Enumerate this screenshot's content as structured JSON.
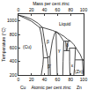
{
  "chart_data": {
    "type": "line",
    "x2label": "Mass per cent zinc",
    "xlabel": "Atomic per cent zinc",
    "ylabel": "Temperature (°C)",
    "end_labels": [
      "Cu",
      "Zn"
    ],
    "xlim": [
      0,
      100
    ],
    "xticks": [
      0,
      20,
      40,
      60,
      80,
      100
    ],
    "x2lim": [
      0,
      100
    ],
    "x2ticks": [
      0,
      20,
      40,
      60,
      80,
      100
    ],
    "ylim": [
      200,
      1100
    ],
    "yticks": [
      200,
      400,
      600,
      800,
      1000
    ],
    "grid": false,
    "color": "#1a1a1a",
    "series": [
      {
        "x": [
          0,
          10,
          20,
          30,
          36.8,
          45,
          52,
          59.1,
          65,
          70,
          75,
          80,
          85,
          88.5,
          92,
          95,
          98.3,
          100
        ],
        "values": [
          1085,
          1062,
          1025,
          965,
          903,
          885,
          860,
          834,
          805,
          770,
          730,
          700,
          650,
          598,
          550,
          500,
          424,
          420
        ]
      },
      {
        "x": [
          0,
          10,
          20,
          32.5
        ],
        "values": [
          1085,
          1045,
          995,
          903
        ]
      },
      {
        "x": [
          32.5,
          36.8
        ],
        "values": [
          903,
          903
        ]
      },
      {
        "x": [
          32.5,
          35,
          37,
          38.3,
          37.5,
          36,
          35
        ],
        "values": [
          903,
          800,
          650,
          454,
          350,
          250,
          200
        ]
      },
      {
        "x": [
          36.8,
          38,
          40,
          42,
          44.8
        ],
        "values": [
          903,
          800,
          700,
          600,
          468
        ]
      },
      {
        "x": [
          56.5,
          55,
          52,
          50,
          48.2
        ],
        "values": [
          834,
          800,
          700,
          600,
          468
        ]
      },
      {
        "x": [
          38.3,
          45
        ],
        "values": [
          454,
          454
        ]
      },
      {
        "x": [
          44.8,
          45.5,
          46,
          46
        ],
        "values": [
          468,
          400,
          300,
          200
        ]
      },
      {
        "x": [
          48.2,
          48.5,
          48.8,
          49
        ],
        "values": [
          468,
          400,
          300,
          200
        ]
      },
      {
        "x": [
          44.8,
          46.5,
          48.2
        ],
        "values": [
          468,
          470,
          468
        ],
        "line_style": "dash"
      },
      {
        "x": [
          56.5,
          59.1
        ],
        "values": [
          834,
          834
        ]
      },
      {
        "x": [
          57.7,
          58,
          58.5,
          59,
          59.5
        ],
        "values": [
          834,
          700,
          600,
          400,
          200
        ]
      },
      {
        "x": [
          58.5,
          64,
          69.5
        ],
        "values": [
          834,
          780,
          700
        ]
      },
      {
        "x": [
          69.5,
          69.5,
          68.5,
          68
        ],
        "values": [
          700,
          600,
          400,
          200
        ]
      },
      {
        "x": [
          69.5,
          80
        ],
        "values": [
          700,
          700
        ]
      },
      {
        "x": [
          72.5,
          73.5
        ],
        "values": [
          700,
          560
        ]
      },
      {
        "x": [
          76,
          74.5
        ],
        "values": [
          700,
          560
        ]
      },
      {
        "x": [
          69.5,
          78.5
        ],
        "values": [
          560,
          560
        ]
      },
      {
        "x": [
          78,
          88.5
        ],
        "values": [
          598,
          598
        ]
      },
      {
        "x": [
          78,
          78.5,
          78.5,
          79
        ],
        "values": [
          598,
          560,
          400,
          200
        ]
      },
      {
        "x": [
          87.5,
          87,
          86,
          85
        ],
        "values": [
          598,
          424,
          300,
          200
        ]
      },
      {
        "x": [
          87,
          98.3
        ],
        "values": [
          424,
          424
        ]
      },
      {
        "x": [
          98.3,
          99,
          99.6
        ],
        "values": [
          424,
          300,
          200
        ]
      },
      {
        "x": [
          98.5,
          100
        ],
        "values": [
          424,
          420
        ]
      }
    ],
    "annotations": [
      {
        "text": "Liquid",
        "x": 72,
        "y": 960
      },
      {
        "text": "(Cu)",
        "x": 13,
        "y": 620
      },
      {
        "text": "β",
        "x": 45,
        "y": 700
      },
      {
        "text": "β′",
        "x": 47,
        "y": 330
      },
      {
        "text": "γ",
        "x": 63,
        "y": 560
      },
      {
        "text": "δ",
        "x": 74.5,
        "y": 640
      },
      {
        "text": "ε",
        "x": 83,
        "y": 350
      },
      {
        "text": "(Zn)",
        "x": 93,
        "y": 250
      }
    ]
  }
}
